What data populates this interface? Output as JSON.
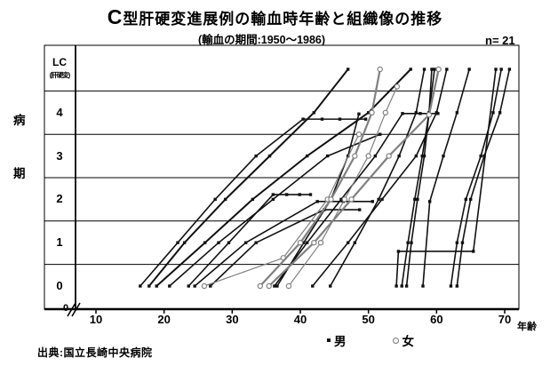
{
  "header": {
    "title": "C型肝硬変進展例の輸血時年齢と組織像の推移",
    "subtitle": "(輸血の期間:1950〜1986)",
    "n_label": "n= 21"
  },
  "axes": {
    "y_title_chars": [
      "病",
      "期"
    ],
    "y_rows": [
      {
        "main": "LC",
        "sub": "(肝硬変)"
      },
      {
        "main": "4"
      },
      {
        "main": "3"
      },
      {
        "main": "2"
      },
      {
        "main": "1"
      },
      {
        "main": "0"
      }
    ],
    "x_ticks": [
      "10",
      "20",
      "30",
      "40",
      "50",
      "60",
      "70"
    ],
    "x_tick_values": [
      10,
      20,
      30,
      40,
      50,
      60,
      70
    ],
    "x_unit": "年齢",
    "origin_label": "0"
  },
  "legend": {
    "male_label": "男",
    "female_label": "女"
  },
  "footer": {
    "source": "出典:国立長崎中央病院"
  },
  "colors": {
    "male": "#111111",
    "female": "#808080",
    "grid": "#000000"
  },
  "chart_data": {
    "type": "line",
    "title": "C型肝硬変進展例の輸血時年齢と組織像の推移",
    "subtitle": "(輸血の期間:1950〜1986)",
    "n": 21,
    "xlabel": "年齢",
    "ylabel": "病期",
    "xlim": [
      5,
      73
    ],
    "stage_labels": [
      "0",
      "1",
      "2",
      "3",
      "4",
      "LC(肝硬変)"
    ],
    "legend_entries": [
      "男 (filled dot)",
      "女 (open circle)"
    ],
    "grid": "horizontal rows per stage",
    "series": [
      {
        "sex": "male",
        "w": 1.6,
        "points": [
          [
            16.5,
            0
          ],
          [
            22,
            1
          ],
          [
            27.5,
            2
          ],
          [
            33.5,
            3
          ],
          [
            40.4,
            3.85
          ],
          [
            43.2,
            3.85
          ],
          [
            45.8,
            3.85
          ],
          [
            49.6,
            3.85
          ]
        ]
      },
      {
        "sex": "male",
        "w": 2.0,
        "points": [
          [
            17.8,
            0
          ],
          [
            23,
            1
          ],
          [
            29,
            2
          ],
          [
            35.5,
            3
          ],
          [
            42,
            4
          ],
          [
            47,
            5
          ]
        ]
      },
      {
        "sex": "male",
        "w": 2.0,
        "points": [
          [
            18.9,
            0
          ],
          [
            26,
            1
          ],
          [
            33,
            2
          ],
          [
            41,
            3
          ],
          [
            50,
            4
          ],
          [
            56.2,
            5
          ]
        ]
      },
      {
        "sex": "male",
        "w": 1.6,
        "points": [
          [
            20.8,
            0
          ],
          [
            28,
            1
          ],
          [
            36,
            2
          ],
          [
            44,
            3
          ],
          [
            51.7,
            3.5
          ]
        ]
      },
      {
        "sex": "male",
        "w": 1.6,
        "points": [
          [
            23.6,
            0
          ],
          [
            29.5,
            1
          ],
          [
            36,
            2.11
          ],
          [
            38,
            2.11
          ],
          [
            39.9,
            2.11
          ],
          [
            41.5,
            2.11
          ]
        ]
      },
      {
        "sex": "male",
        "w": 1.6,
        "points": [
          [
            24.5,
            0
          ],
          [
            32,
            1
          ],
          [
            42.5,
            1.95
          ],
          [
            46.3,
            1.95
          ],
          [
            50.6,
            1.95
          ]
        ]
      },
      {
        "sex": "male",
        "w": 1.6,
        "points": [
          [
            26.8,
            0
          ],
          [
            33.5,
            1
          ],
          [
            43.5,
            1.76
          ],
          [
            48.7,
            1.76
          ]
        ]
      },
      {
        "sex": "female",
        "w": 1.2,
        "points": [
          [
            25.9,
            0
          ],
          [
            37.5,
            0.65
          ],
          [
            44,
            2
          ],
          [
            48.6,
            3.5
          ]
        ]
      },
      {
        "sex": "female",
        "w": 2.2,
        "points": [
          [
            34.1,
            0
          ],
          [
            40,
            1
          ],
          [
            44.5,
            2
          ],
          [
            48,
            3
          ],
          [
            50.5,
            4
          ],
          [
            51.7,
            5
          ]
        ]
      },
      {
        "sex": "female",
        "w": 2.2,
        "points": [
          [
            35.4,
            0
          ],
          [
            42,
            1
          ],
          [
            47.5,
            2
          ],
          [
            53,
            3
          ],
          [
            58.9,
            3.95
          ],
          [
            60.3,
            5
          ]
        ]
      },
      {
        "sex": "female",
        "w": 1.2,
        "points": [
          [
            38.3,
            0
          ],
          [
            43,
            1
          ],
          [
            46.5,
            2
          ],
          [
            50,
            3
          ],
          [
            52.5,
            4
          ],
          [
            54.2,
            4.6
          ]
        ]
      },
      {
        "sex": "male",
        "w": 1.6,
        "points": [
          [
            36.2,
            0
          ],
          [
            41,
            1
          ],
          [
            46,
            2
          ],
          [
            51,
            3
          ],
          [
            55,
            3.98
          ],
          [
            57.6,
            3.98
          ],
          [
            60.2,
            3.98
          ]
        ]
      },
      {
        "sex": "male",
        "w": 1.6,
        "points": [
          [
            36.6,
            0
          ],
          [
            40.5,
            1
          ],
          [
            44.5,
            2
          ],
          [
            47,
            3
          ],
          [
            48.6,
            3.97
          ]
        ]
      },
      {
        "sex": "male",
        "w": 1.6,
        "points": [
          [
            41.8,
            0
          ],
          [
            47,
            1
          ],
          [
            52,
            2
          ],
          [
            57,
            3
          ],
          [
            60,
            4
          ],
          [
            61.5,
            5
          ]
        ]
      },
      {
        "sex": "male",
        "w": 1.6,
        "points": [
          [
            44.4,
            0
          ],
          [
            48,
            1
          ],
          [
            51.5,
            2
          ],
          [
            54.5,
            3
          ],
          [
            57,
            4
          ],
          [
            58.2,
            5
          ]
        ]
      },
      {
        "sex": "male",
        "w": 1.6,
        "points": [
          [
            54.1,
            0
          ],
          [
            54.4,
            0.8
          ],
          [
            65.4,
            0.8
          ],
          [
            68.7,
            5
          ]
        ]
      },
      {
        "sex": "male",
        "w": 1.6,
        "points": [
          [
            54.9,
            0
          ],
          [
            55.8,
            1
          ],
          [
            56.8,
            2
          ],
          [
            57.9,
            3
          ],
          [
            58.9,
            4
          ],
          [
            59.7,
            5
          ]
        ]
      },
      {
        "sex": "male",
        "w": 1.6,
        "points": [
          [
            55.6,
            0
          ],
          [
            56.3,
            1
          ],
          [
            57.2,
            2
          ],
          [
            58.2,
            3
          ],
          [
            58.9,
            4
          ],
          [
            59.3,
            5
          ]
        ]
      },
      {
        "sex": "male",
        "w": 1.6,
        "points": [
          [
            58,
            0
          ],
          [
            59,
            1.95
          ],
          [
            61,
            3
          ],
          [
            63,
            4
          ],
          [
            64.8,
            5
          ]
        ]
      },
      {
        "sex": "male",
        "w": 1.6,
        "points": [
          [
            62.1,
            0
          ],
          [
            63,
            1
          ],
          [
            64.3,
            2
          ],
          [
            66.5,
            3
          ],
          [
            68.3,
            4
          ],
          [
            69.5,
            5
          ]
        ]
      },
      {
        "sex": "male",
        "w": 1.6,
        "points": [
          [
            63,
            0
          ],
          [
            63.8,
            1
          ],
          [
            65,
            2
          ],
          [
            67,
            3
          ],
          [
            69.3,
            4
          ],
          [
            70.7,
            5
          ]
        ]
      }
    ]
  }
}
